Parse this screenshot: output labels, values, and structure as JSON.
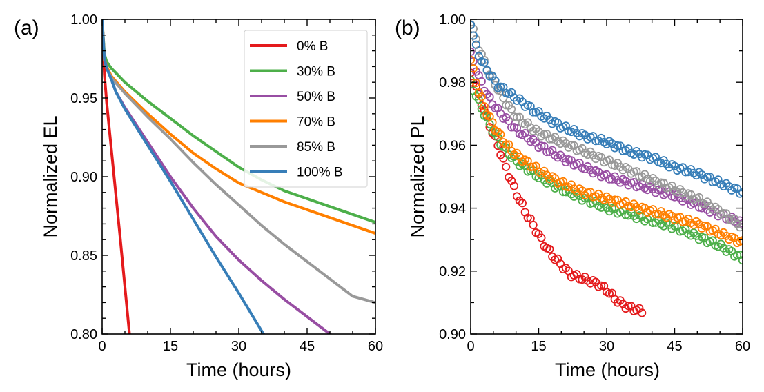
{
  "chart_data": [
    {
      "type": "line",
      "panel_label": "(a)",
      "xlabel": "Time (hours)",
      "ylabel": "Normalized EL",
      "xlim": [
        0,
        60
      ],
      "ylim": [
        0.8,
        1.0
      ],
      "xticks": [
        0,
        15,
        30,
        45,
        60
      ],
      "xtick_labels": [
        "0",
        "15",
        "30",
        "45",
        "60"
      ],
      "yticks": [
        0.8,
        0.85,
        0.9,
        0.95,
        1.0
      ],
      "ytick_labels": [
        "0.80",
        "0.85",
        "0.90",
        "0.95",
        "1.00"
      ],
      "legend_position": "top-right",
      "series": [
        {
          "name": "0% B",
          "color": "#e41a1c",
          "x": [
            0,
            0.5,
            1,
            2,
            3,
            4,
            5,
            6,
            6.5
          ],
          "y": [
            1.0,
            0.965,
            0.947,
            0.918,
            0.889,
            0.86,
            0.83,
            0.8,
            0.786
          ]
        },
        {
          "name": "30% B",
          "color": "#4daf4a",
          "x": [
            0,
            0.5,
            1,
            2,
            5,
            10,
            15,
            20,
            25,
            30,
            35,
            40,
            45,
            50,
            55,
            60
          ],
          "y": [
            1.0,
            0.978,
            0.973,
            0.969,
            0.96,
            0.948,
            0.937,
            0.926,
            0.916,
            0.906,
            0.898,
            0.891,
            0.886,
            0.881,
            0.876,
            0.871
          ]
        },
        {
          "name": "50% B",
          "color": "#984ea3",
          "x": [
            0,
            0.5,
            1,
            2,
            3,
            5,
            10,
            15,
            20,
            25,
            30,
            35,
            40,
            45,
            50,
            54
          ],
          "y": [
            1.0,
            0.975,
            0.969,
            0.962,
            0.954,
            0.944,
            0.922,
            0.9,
            0.88,
            0.862,
            0.847,
            0.834,
            0.822,
            0.811,
            0.8,
            0.791
          ]
        },
        {
          "name": "70% B",
          "color": "#ff7f00",
          "x": [
            0,
            0.5,
            1,
            2,
            5,
            10,
            15,
            20,
            25,
            30,
            35,
            40,
            45,
            50,
            55,
            60
          ],
          "y": [
            1.0,
            0.975,
            0.97,
            0.964,
            0.954,
            0.94,
            0.927,
            0.915,
            0.905,
            0.896,
            0.89,
            0.884,
            0.879,
            0.874,
            0.869,
            0.864
          ]
        },
        {
          "name": "85% B",
          "color": "#999999",
          "x": [
            0,
            0.5,
            1,
            2,
            5,
            10,
            15,
            20,
            25,
            30,
            35,
            40,
            45,
            50,
            55,
            60
          ],
          "y": [
            1.0,
            0.974,
            0.969,
            0.963,
            0.953,
            0.938,
            0.924,
            0.909,
            0.895,
            0.882,
            0.869,
            0.857,
            0.846,
            0.835,
            0.824,
            0.82
          ]
        },
        {
          "name": "100% B",
          "color": "#377eb8",
          "x": [
            0,
            0.5,
            1,
            2,
            3,
            5,
            10,
            15,
            20,
            25,
            30,
            35,
            40,
            41
          ],
          "y": [
            1.0,
            0.975,
            0.969,
            0.962,
            0.954,
            0.943,
            0.92,
            0.897,
            0.873,
            0.849,
            0.826,
            0.802,
            0.779,
            0.775
          ]
        }
      ]
    },
    {
      "type": "scatter",
      "panel_label": "(b)",
      "xlabel": "Time (hours)",
      "ylabel": "Normalized PL",
      "xlim": [
        0,
        60
      ],
      "ylim": [
        0.9,
        1.0
      ],
      "xticks": [
        0,
        15,
        30,
        45,
        60
      ],
      "xtick_labels": [
        "0",
        "15",
        "30",
        "45",
        "60"
      ],
      "yticks": [
        0.9,
        0.92,
        0.94,
        0.96,
        0.98,
        1.0
      ],
      "ytick_labels": [
        "0.90",
        "0.92",
        "0.94",
        "0.96",
        "0.98",
        "1.00"
      ],
      "series": [
        {
          "color": "#e41a1c",
          "xmax": 38,
          "x": [
            0,
            2,
            4,
            6,
            8,
            10,
            12,
            14,
            16,
            18,
            20,
            22,
            24,
            26,
            28,
            30,
            32,
            34,
            36,
            38
          ],
          "y": [
            0.983,
            0.975,
            0.967,
            0.96,
            0.952,
            0.945,
            0.939,
            0.934,
            0.929,
            0.925,
            0.922,
            0.919,
            0.918,
            0.917,
            0.916,
            0.914,
            0.911,
            0.909,
            0.908,
            0.907
          ]
        },
        {
          "color": "#4daf4a",
          "xmax": 60,
          "x": [
            0,
            2,
            4,
            6,
            8,
            10,
            12,
            15,
            20,
            25,
            30,
            35,
            40,
            45,
            50,
            55,
            60
          ],
          "y": [
            0.98,
            0.973,
            0.967,
            0.962,
            0.958,
            0.955,
            0.953,
            0.95,
            0.946,
            0.943,
            0.94,
            0.938,
            0.936,
            0.934,
            0.931,
            0.928,
            0.924
          ]
        },
        {
          "color": "#984ea3",
          "xmax": 60,
          "x": [
            0,
            2,
            4,
            6,
            8,
            10,
            12,
            15,
            20,
            25,
            30,
            35,
            40,
            45,
            50,
            55,
            60
          ],
          "y": [
            0.989,
            0.981,
            0.975,
            0.971,
            0.968,
            0.965,
            0.963,
            0.96,
            0.956,
            0.953,
            0.95,
            0.948,
            0.946,
            0.944,
            0.941,
            0.938,
            0.935
          ]
        },
        {
          "color": "#ff7f00",
          "xmax": 60,
          "x": [
            0,
            2,
            4,
            6,
            8,
            10,
            12,
            15,
            20,
            25,
            30,
            35,
            40,
            45,
            50,
            55,
            60
          ],
          "y": [
            0.987,
            0.976,
            0.969,
            0.964,
            0.96,
            0.957,
            0.955,
            0.952,
            0.948,
            0.945,
            0.943,
            0.941,
            0.939,
            0.937,
            0.935,
            0.932,
            0.929
          ]
        },
        {
          "color": "#999999",
          "xmax": 60,
          "x": [
            0,
            2,
            4,
            6,
            8,
            10,
            12,
            15,
            20,
            25,
            30,
            35,
            40,
            45,
            50,
            55,
            60
          ],
          "y": [
            0.999,
            0.99,
            0.983,
            0.978,
            0.973,
            0.969,
            0.967,
            0.964,
            0.961,
            0.958,
            0.955,
            0.952,
            0.949,
            0.946,
            0.943,
            0.939,
            0.934
          ]
        },
        {
          "color": "#377eb8",
          "xmax": 60,
          "x": [
            0,
            1,
            2,
            4,
            6,
            8,
            10,
            12,
            15,
            20,
            25,
            30,
            35,
            40,
            45,
            50,
            55,
            60
          ],
          "y": [
            0.999,
            0.992,
            0.988,
            0.983,
            0.979,
            0.977,
            0.975,
            0.973,
            0.97,
            0.966,
            0.963,
            0.961,
            0.958,
            0.956,
            0.953,
            0.951,
            0.948,
            0.945
          ]
        }
      ]
    }
  ]
}
